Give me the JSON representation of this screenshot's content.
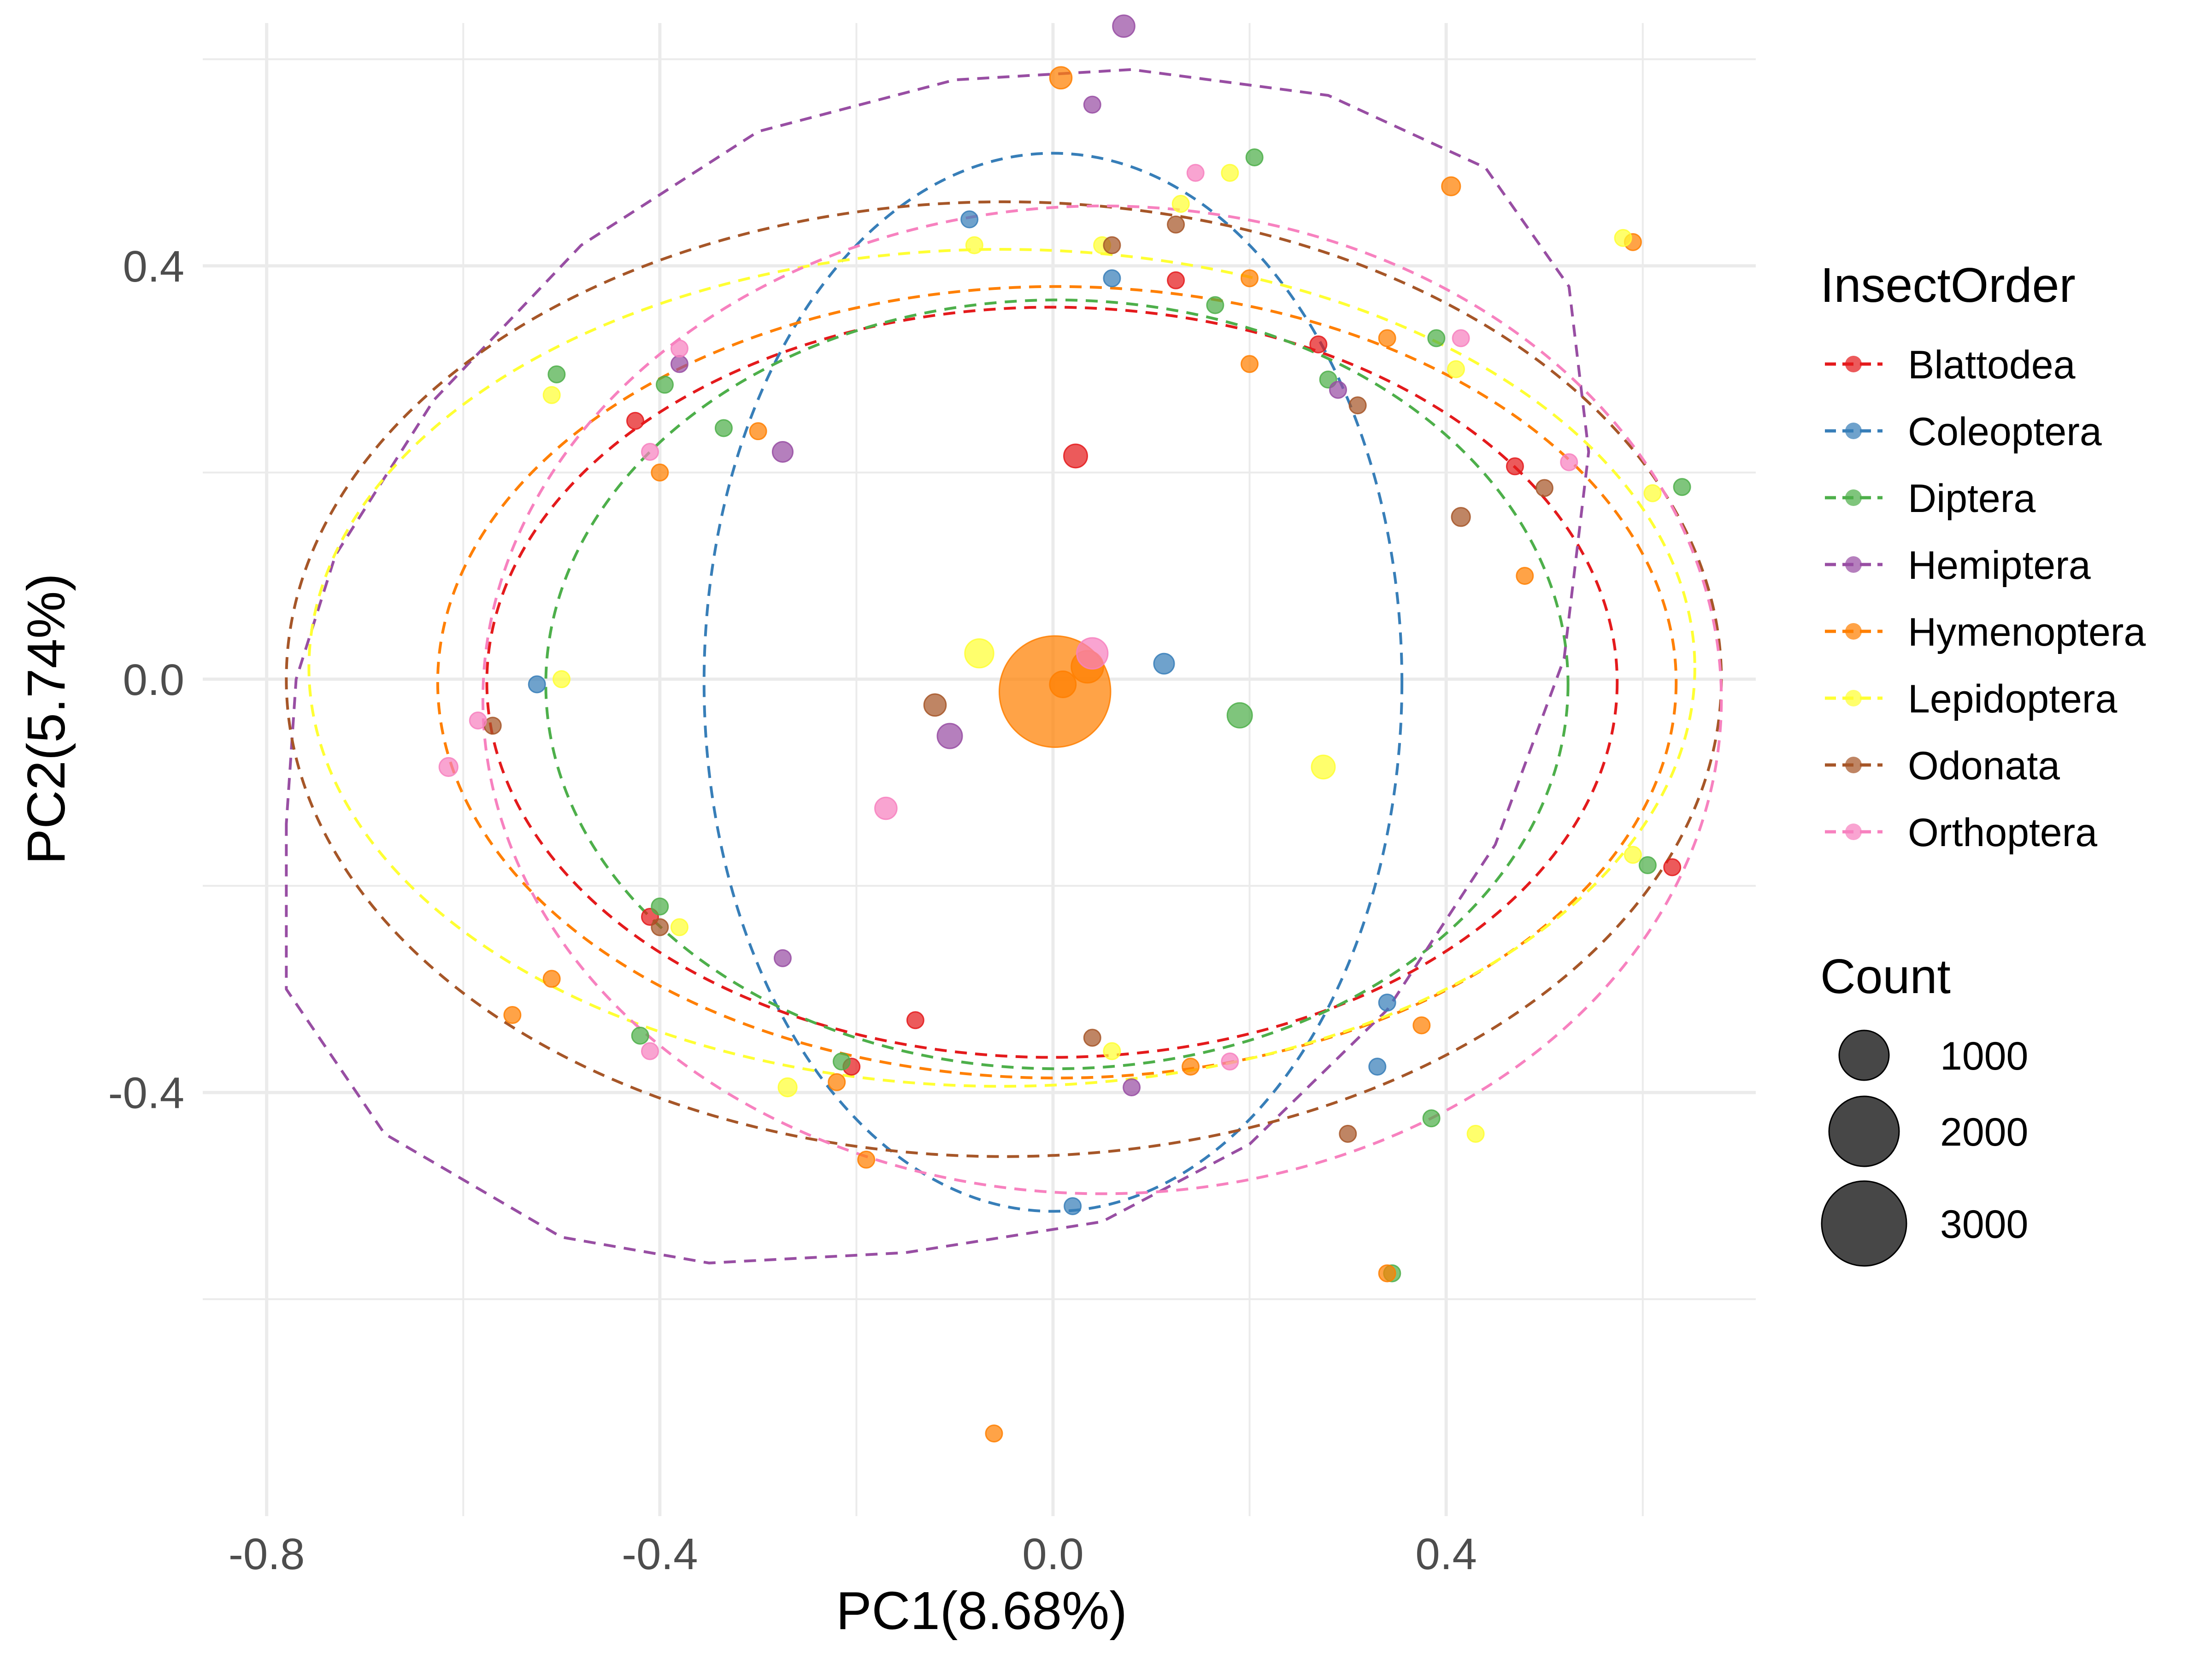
{
  "chart_data": {
    "type": "scatter",
    "xlabel": "PC1(8.68%)",
    "ylabel": "PC2(5.74%)",
    "xlim": [
      -0.865,
      0.715
    ],
    "ylim": [
      -0.81,
      0.635
    ],
    "x_ticks": [
      {
        "value": -0.8,
        "label": "-0.8"
      },
      {
        "value": -0.4,
        "label": "-0.4"
      },
      {
        "value": 0.0,
        "label": "0.0"
      },
      {
        "value": 0.4,
        "label": "0.4"
      }
    ],
    "y_ticks": [
      {
        "value": 0.4,
        "label": "0.4"
      },
      {
        "value": 0.0,
        "label": "0.0"
      },
      {
        "value": -0.4,
        "label": "-0.4"
      }
    ],
    "grid": true,
    "legend": {
      "position": "right",
      "color_title": "InsectOrder",
      "size_title": "Count",
      "size_entries": [
        {
          "value": 1000,
          "label": "1000"
        },
        {
          "value": 2000,
          "label": "2000"
        },
        {
          "value": 3000,
          "label": "3000"
        }
      ]
    },
    "series": [
      {
        "name": "Blattodea",
        "color": "#E41A1C",
        "ellipse": {
          "cx": -0.001,
          "cy": -0.003,
          "rx": 0.575,
          "ry": 0.363
        },
        "points": [
          [
            0.023,
            0.216,
            160
          ],
          [
            -0.425,
            0.25,
            80
          ],
          [
            -0.41,
            -0.23,
            80
          ],
          [
            -0.205,
            -0.375,
            80
          ],
          [
            0.125,
            0.386,
            80
          ],
          [
            0.27,
            0.324,
            80
          ],
          [
            0.47,
            0.206,
            80
          ],
          [
            0.63,
            -0.182,
            80
          ],
          [
            -0.14,
            -0.33,
            80
          ]
        ]
      },
      {
        "name": "Coleoptera",
        "color": "#377EB8",
        "ellipse": {
          "cx": 0.0,
          "cy": -0.003,
          "rx": 0.355,
          "ry": 0.512
        },
        "points": [
          [
            0.113,
            0.015,
            120
          ],
          [
            -0.525,
            -0.005,
            80
          ],
          [
            0.02,
            -0.51,
            80
          ],
          [
            0.34,
            -0.313,
            80
          ],
          [
            -0.085,
            0.445,
            80
          ],
          [
            0.06,
            0.388,
            80
          ],
          [
            0.33,
            -0.375,
            80
          ]
        ]
      },
      {
        "name": "Diptera",
        "color": "#4DAF4A",
        "ellipse": {
          "cx": 0.004,
          "cy": -0.005,
          "rx": 0.52,
          "ry": 0.372
        },
        "points": [
          [
            0.19,
            -0.035,
            180
          ],
          [
            -0.505,
            0.295,
            80
          ],
          [
            -0.395,
            0.285,
            80
          ],
          [
            -0.335,
            0.243,
            80
          ],
          [
            0.205,
            0.505,
            80
          ],
          [
            0.39,
            0.33,
            80
          ],
          [
            0.64,
            0.186,
            80
          ],
          [
            0.605,
            -0.18,
            80
          ],
          [
            0.385,
            -0.425,
            80
          ],
          [
            0.345,
            -0.575,
            80
          ],
          [
            -0.42,
            -0.345,
            80
          ],
          [
            -0.215,
            -0.37,
            80
          ],
          [
            -0.4,
            -0.22,
            80
          ],
          [
            0.28,
            0.29,
            80
          ],
          [
            0.165,
            0.362,
            80
          ]
        ]
      },
      {
        "name": "Hemiptera",
        "color": "#984EA3",
        "ellipse": {
          "path": [
            [
              -0.78,
              -0.14
            ],
            [
              -0.78,
              -0.3
            ],
            [
              -0.68,
              -0.44
            ],
            [
              -0.5,
              -0.54
            ],
            [
              -0.35,
              -0.565
            ],
            [
              -0.15,
              -0.555
            ],
            [
              0.05,
              -0.525
            ],
            [
              0.2,
              -0.45
            ],
            [
              0.34,
              -0.32
            ],
            [
              0.45,
              -0.16
            ],
            [
              0.52,
              0.02
            ],
            [
              0.545,
              0.22
            ],
            [
              0.525,
              0.38
            ],
            [
              0.44,
              0.495
            ],
            [
              0.28,
              0.565
            ],
            [
              0.08,
              0.59
            ],
            [
              -0.1,
              0.58
            ],
            [
              -0.3,
              0.53
            ],
            [
              -0.48,
              0.42
            ],
            [
              -0.63,
              0.27
            ],
            [
              -0.73,
              0.12
            ],
            [
              -0.77,
              0.0
            ]
          ]
        },
        "points": [
          [
            -0.105,
            -0.055,
            180
          ],
          [
            0.072,
            0.632,
            140
          ],
          [
            -0.275,
            0.22,
            120
          ],
          [
            0.04,
            0.556,
            80
          ],
          [
            -0.38,
            0.305,
            80
          ],
          [
            0.08,
            -0.395,
            80
          ],
          [
            0.29,
            0.28,
            80
          ],
          [
            -0.275,
            -0.27,
            80
          ]
        ]
      },
      {
        "name": "Hymenoptera",
        "color": "#FF7F00",
        "ellipse": {
          "cx": 0.004,
          "cy": -0.003,
          "rx": 0.63,
          "ry": 0.383
        },
        "points": [
          [
            0.002,
            -0.012,
            3600
          ],
          [
            0.035,
            0.012,
            300
          ],
          [
            0.01,
            -0.005,
            200
          ],
          [
            0.008,
            0.582,
            140
          ],
          [
            0.405,
            0.477,
            100
          ],
          [
            0.59,
            0.423,
            80
          ],
          [
            -0.4,
            0.2,
            80
          ],
          [
            -0.55,
            -0.325,
            80
          ],
          [
            -0.51,
            -0.29,
            80
          ],
          [
            0.375,
            -0.335,
            80
          ],
          [
            0.34,
            -0.575,
            80
          ],
          [
            -0.22,
            -0.39,
            80
          ],
          [
            -0.19,
            -0.465,
            80
          ],
          [
            -0.06,
            -0.73,
            80
          ],
          [
            0.2,
            0.388,
            80
          ],
          [
            0.34,
            0.33,
            80
          ],
          [
            0.48,
            0.1,
            80
          ],
          [
            0.14,
            -0.375,
            80
          ],
          [
            -0.3,
            0.24,
            80
          ],
          [
            0.2,
            0.305,
            80
          ]
        ]
      },
      {
        "name": "Lepidoptera",
        "color": "#FFFF33",
        "ellipse": {
          "cx": -0.052,
          "cy": 0.011,
          "rx": 0.705,
          "ry": 0.405
        },
        "points": [
          [
            -0.075,
            0.025,
            240
          ],
          [
            0.275,
            -0.085,
            160
          ],
          [
            -0.27,
            -0.395,
            100
          ],
          [
            0.58,
            0.427,
            80
          ],
          [
            0.61,
            0.18,
            80
          ],
          [
            0.59,
            -0.17,
            80
          ],
          [
            0.43,
            -0.44,
            80
          ],
          [
            0.13,
            0.46,
            80
          ],
          [
            -0.08,
            0.42,
            80
          ],
          [
            -0.51,
            0.275,
            80
          ],
          [
            -0.5,
            0.0,
            80
          ],
          [
            -0.38,
            -0.24,
            80
          ],
          [
            0.06,
            -0.36,
            80
          ],
          [
            0.18,
            0.49,
            80
          ],
          [
            0.41,
            0.3,
            80
          ],
          [
            0.05,
            0.42,
            80
          ]
        ]
      },
      {
        "name": "Odonata",
        "color": "#A65628",
        "ellipse": {
          "cx": -0.05,
          "cy": 0.0,
          "rx": 0.73,
          "ry": 0.462
        },
        "points": [
          [
            -0.12,
            -0.025,
            140
          ],
          [
            0.415,
            0.157,
            100
          ],
          [
            -0.57,
            -0.045,
            80
          ],
          [
            0.06,
            0.42,
            80
          ],
          [
            0.31,
            0.265,
            80
          ],
          [
            0.5,
            0.185,
            80
          ],
          [
            0.3,
            -0.44,
            80
          ],
          [
            -0.4,
            -0.24,
            80
          ],
          [
            0.04,
            -0.347,
            80
          ],
          [
            0.125,
            0.44,
            80
          ]
        ]
      },
      {
        "name": "Orthoptera",
        "color": "#F781BF",
        "ellipse": {
          "cx": 0.05,
          "cy": -0.02,
          "rx": 0.63,
          "ry": 0.478
        },
        "points": [
          [
            0.04,
            0.025,
            280
          ],
          [
            -0.17,
            -0.125,
            140
          ],
          [
            -0.615,
            -0.085,
            100
          ],
          [
            -0.41,
            0.22,
            80
          ],
          [
            -0.41,
            -0.36,
            80
          ],
          [
            0.18,
            -0.37,
            80
          ],
          [
            0.415,
            0.33,
            80
          ],
          [
            0.525,
            0.21,
            80
          ],
          [
            -0.585,
            -0.04,
            80
          ],
          [
            -0.38,
            0.32,
            80
          ],
          [
            0.145,
            0.49,
            80
          ]
        ]
      }
    ]
  }
}
